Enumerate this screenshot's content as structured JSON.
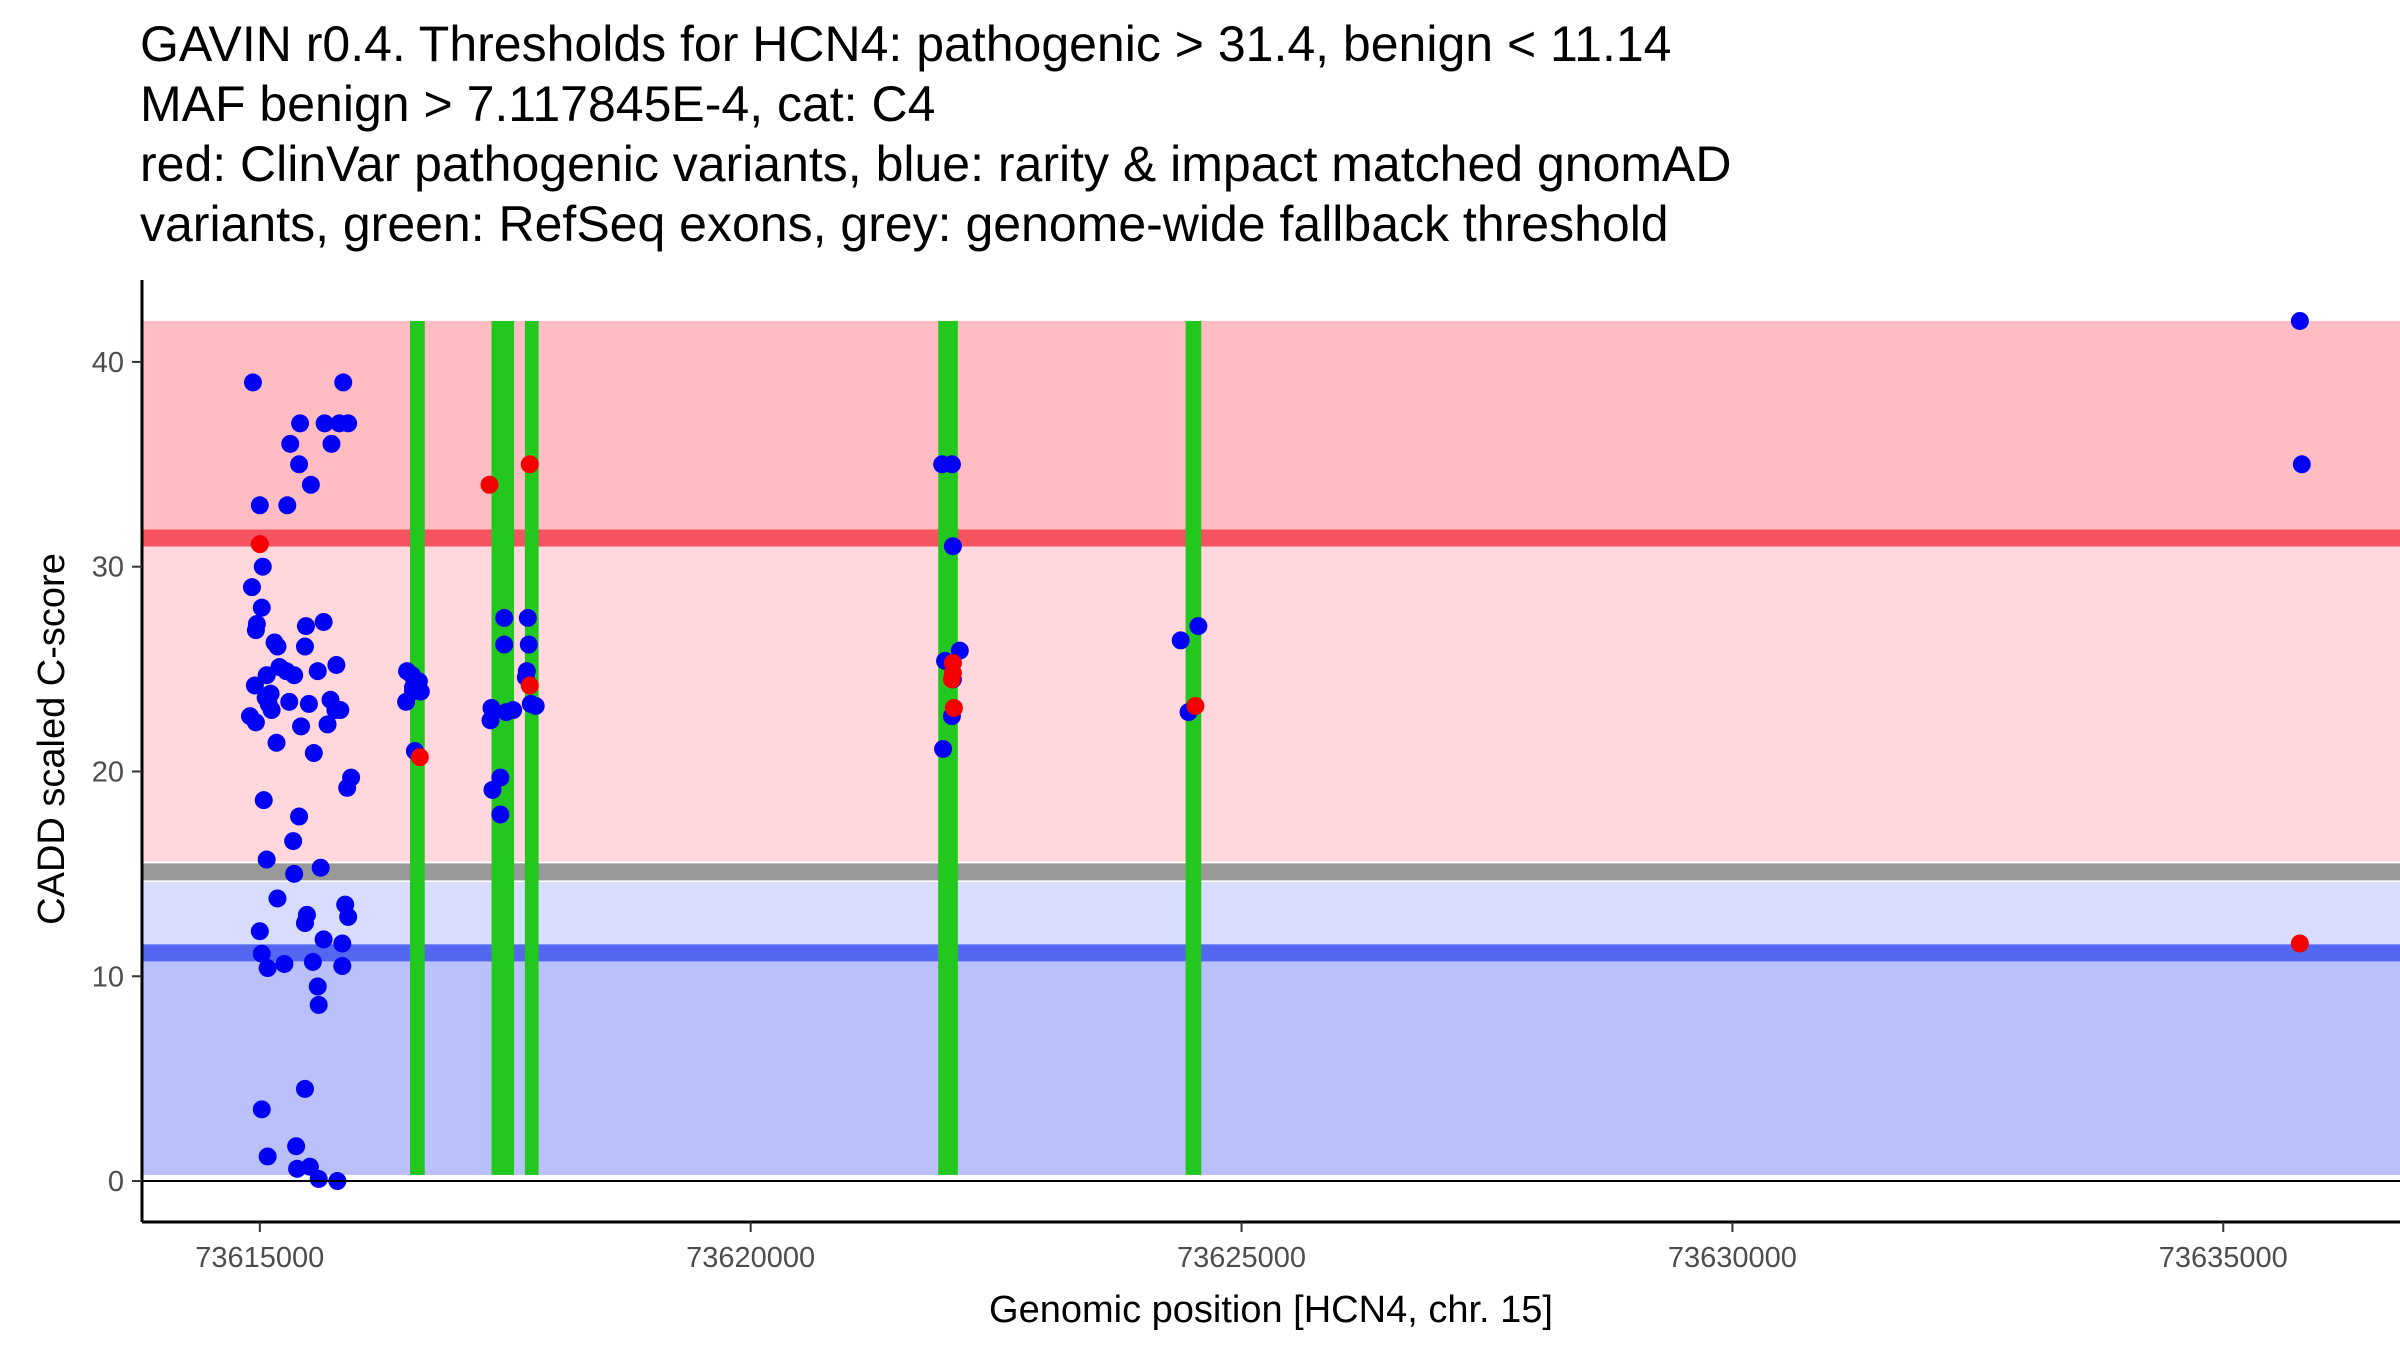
{
  "chart_data": {
    "type": "scatter",
    "title_lines": [
      "GAVIN r0.4. Thresholds for HCN4: pathogenic > 31.4, benign < 11.14",
      "MAF benign > 7.117845E-4, cat: C4",
      "red: ClinVar pathogenic variants, blue: rarity & impact matched gnomAD",
      "variants, green: RefSeq exons, grey: genome-wide fallback threshold"
    ],
    "xlabel": "Genomic position [HCN4, chr. 15]",
    "ylabel": "CADD scaled C-score",
    "xlim": [
      73613800,
      73636800
    ],
    "ylim": [
      -2,
      44
    ],
    "x_ticks": [
      73615000,
      73620000,
      73625000,
      73630000,
      73635000
    ],
    "x_tick_labels": [
      "73615000",
      "73620000",
      "73625000",
      "73630000",
      "73635000"
    ],
    "y_ticks": [
      0,
      10,
      20,
      30,
      40
    ],
    "y_tick_labels": [
      "0",
      "10",
      "20",
      "30",
      "40"
    ],
    "grid": false,
    "colors": {
      "pathogenic_region": "#ffbcc3",
      "pathogenic_zone": "#ffd7dc",
      "benign_zone": "#d8dcff",
      "benign_region": "#bac0fa",
      "pathogenic_threshold_line": "#f4535f",
      "benign_threshold_line": "#5467f0",
      "fallback_threshold_line": "#999999",
      "exon": "#22c81e",
      "gnomad_point": "#0000f5",
      "clinvar_point": "#f50000"
    },
    "regions": {
      "benign_region": [
        0.3,
        11.14
      ],
      "benign_zone": [
        11.14,
        14.6
      ],
      "pathogenic_zone": [
        15.6,
        31.4
      ],
      "pathogenic_region": [
        31.4,
        42
      ]
    },
    "thresholds": {
      "pathogenic": 31.4,
      "benign": 11.14,
      "fallback": 15.1
    },
    "exons": [
      {
        "start": 73616530,
        "end": 73616680
      },
      {
        "start": 73617360,
        "end": 73617590
      },
      {
        "start": 73617700,
        "end": 73617840
      },
      {
        "start": 73621910,
        "end": 73622110
      },
      {
        "start": 73624430,
        "end": 73624590
      }
    ],
    "series": [
      {
        "name": "gnomAD",
        "points": [
          [
            73614930,
            39.0
          ],
          [
            73614950,
            24.2
          ],
          [
            73614900,
            22.7
          ],
          [
            73614960,
            22.4
          ],
          [
            73614920,
            29.0
          ],
          [
            73614960,
            26.9
          ],
          [
            73614970,
            27.2
          ],
          [
            73615000,
            33.0
          ],
          [
            73615030,
            30.0
          ],
          [
            73615020,
            28.0
          ],
          [
            73615070,
            24.7
          ],
          [
            73615090,
            23.3
          ],
          [
            73615110,
            23.8
          ],
          [
            73615060,
            23.6
          ],
          [
            73615150,
            26.3
          ],
          [
            73615180,
            26.1
          ],
          [
            73615120,
            23.0
          ],
          [
            73615200,
            25.1
          ],
          [
            73615270,
            24.9
          ],
          [
            73615350,
            24.7
          ],
          [
            73615300,
            23.4
          ],
          [
            73615040,
            18.6
          ],
          [
            73615170,
            21.4
          ],
          [
            73615280,
            33.0
          ],
          [
            73615310,
            36.0
          ],
          [
            73615400,
            35.0
          ],
          [
            73615410,
            37.0
          ],
          [
            73615520,
            34.0
          ],
          [
            73615470,
            27.1
          ],
          [
            73615460,
            26.1
          ],
          [
            73615420,
            22.2
          ],
          [
            73615500,
            23.3
          ],
          [
            73615550,
            20.9
          ],
          [
            73615590,
            24.9
          ],
          [
            73615650,
            27.3
          ],
          [
            73615690,
            22.3
          ],
          [
            73615720,
            23.5
          ],
          [
            73615660,
            37.0
          ],
          [
            73615730,
            36.0
          ],
          [
            73615780,
            25.2
          ],
          [
            73615810,
            37.0
          ],
          [
            73615770,
            23.0
          ],
          [
            73615820,
            23.0
          ],
          [
            73615900,
            37.0
          ],
          [
            73615850,
            39.0
          ],
          [
            73615890,
            19.2
          ],
          [
            73615930,
            19.7
          ],
          [
            73615070,
            15.7
          ],
          [
            73615340,
            16.6
          ],
          [
            73615350,
            15.0
          ],
          [
            73615400,
            17.8
          ],
          [
            73615620,
            15.3
          ],
          [
            73615180,
            13.8
          ],
          [
            73615000,
            12.2
          ],
          [
            73615460,
            12.6
          ],
          [
            73615480,
            13.0
          ],
          [
            73615650,
            11.8
          ],
          [
            73615870,
            13.5
          ],
          [
            73615900,
            12.9
          ],
          [
            73615020,
            11.1
          ],
          [
            73615080,
            10.4
          ],
          [
            73615250,
            10.6
          ],
          [
            73615540,
            10.7
          ],
          [
            73615840,
            11.6
          ],
          [
            73615840,
            10.5
          ],
          [
            73615590,
            9.5
          ],
          [
            73615600,
            8.6
          ],
          [
            73615020,
            3.5
          ],
          [
            73615460,
            4.5
          ],
          [
            73615080,
            1.2
          ],
          [
            73615370,
            1.7
          ],
          [
            73615380,
            0.6
          ],
          [
            73615510,
            0.7
          ],
          [
            73615600,
            0.1
          ],
          [
            73615790,
            0.0
          ],
          [
            73616500,
            24.9
          ],
          [
            73616550,
            24.7
          ],
          [
            73616490,
            23.4
          ],
          [
            73616560,
            24.1
          ],
          [
            73616620,
            24.4
          ],
          [
            73616640,
            23.9
          ],
          [
            73616560,
            23.9
          ],
          [
            73616580,
            21.0
          ],
          [
            73617360,
            23.1
          ],
          [
            73617350,
            22.5
          ],
          [
            73617490,
            27.5
          ],
          [
            73617490,
            26.2
          ],
          [
            73617510,
            22.9
          ],
          [
            73617580,
            23.0
          ],
          [
            73617370,
            19.1
          ],
          [
            73617450,
            19.7
          ],
          [
            73617450,
            17.9
          ],
          [
            73617730,
            27.5
          ],
          [
            73617740,
            26.2
          ],
          [
            73617720,
            24.9
          ],
          [
            73617710,
            24.6
          ],
          [
            73617760,
            23.3
          ],
          [
            73617810,
            23.2
          ],
          [
            73621950,
            35.0
          ],
          [
            73622050,
            35.0
          ],
          [
            73622060,
            31.0
          ],
          [
            73622130,
            25.9
          ],
          [
            73621980,
            25.4
          ],
          [
            73622060,
            24.5
          ],
          [
            73622050,
            22.7
          ],
          [
            73621960,
            21.1
          ],
          [
            73624380,
            26.4
          ],
          [
            73624560,
            27.1
          ],
          [
            73624460,
            22.9
          ],
          [
            73635780,
            42.0
          ],
          [
            73635800,
            35.0
          ]
        ]
      },
      {
        "name": "ClinVar",
        "points": [
          [
            73615000,
            31.1
          ],
          [
            73616630,
            20.7
          ],
          [
            73617340,
            34.0
          ],
          [
            73617750,
            35.0
          ],
          [
            73617750,
            24.2
          ],
          [
            73622060,
            25.3
          ],
          [
            73622060,
            24.8
          ],
          [
            73622050,
            24.5
          ],
          [
            73622070,
            23.1
          ],
          [
            73624530,
            23.2
          ],
          [
            73635780,
            11.6
          ]
        ]
      }
    ]
  }
}
